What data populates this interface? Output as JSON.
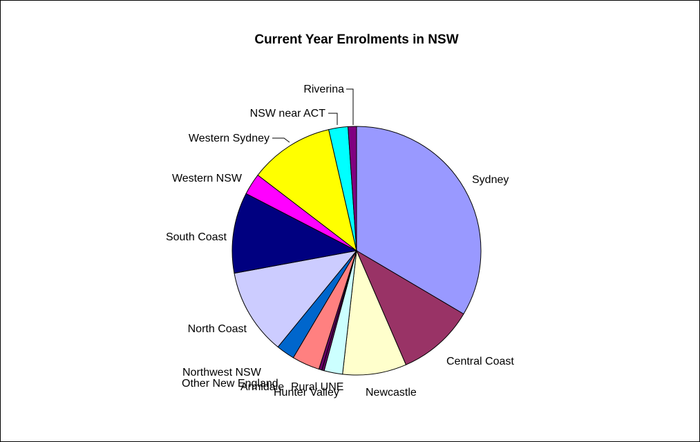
{
  "chart_data": {
    "type": "pie",
    "title": "Current Year Enrolments in NSW",
    "slices": [
      {
        "label": "Sydney",
        "value": 33.5,
        "color": "#9999ff"
      },
      {
        "label": "Central Coast",
        "value": 10.0,
        "color": "#993366"
      },
      {
        "label": "Newcastle",
        "value": 8.3,
        "color": "#ffffcc"
      },
      {
        "label": "Hunter Valley",
        "value": 2.4,
        "color": "#ccffff"
      },
      {
        "label": "Rural UNE",
        "value": 0.3,
        "color": "#660066"
      },
      {
        "label": "Armidale",
        "value": 0.4,
        "color": "#660066"
      },
      {
        "label": "Other New England",
        "value": 3.6,
        "color": "#ff8080"
      },
      {
        "label": "Northwest NSW",
        "value": 2.4,
        "color": "#0066cc"
      },
      {
        "label": "North Coast",
        "value": 11.2,
        "color": "#ccccff"
      },
      {
        "label": "South Coast",
        "value": 10.5,
        "color": "#000080"
      },
      {
        "label": "Western NSW",
        "value": 2.8,
        "color": "#ff00ff"
      },
      {
        "label": "Western Sydney",
        "value": 11.0,
        "color": "#ffff00"
      },
      {
        "label": "NSW near ACT",
        "value": 2.5,
        "color": "#00ffff"
      },
      {
        "label": "Riverina",
        "value": 1.1,
        "color": "#800080"
      }
    ]
  }
}
